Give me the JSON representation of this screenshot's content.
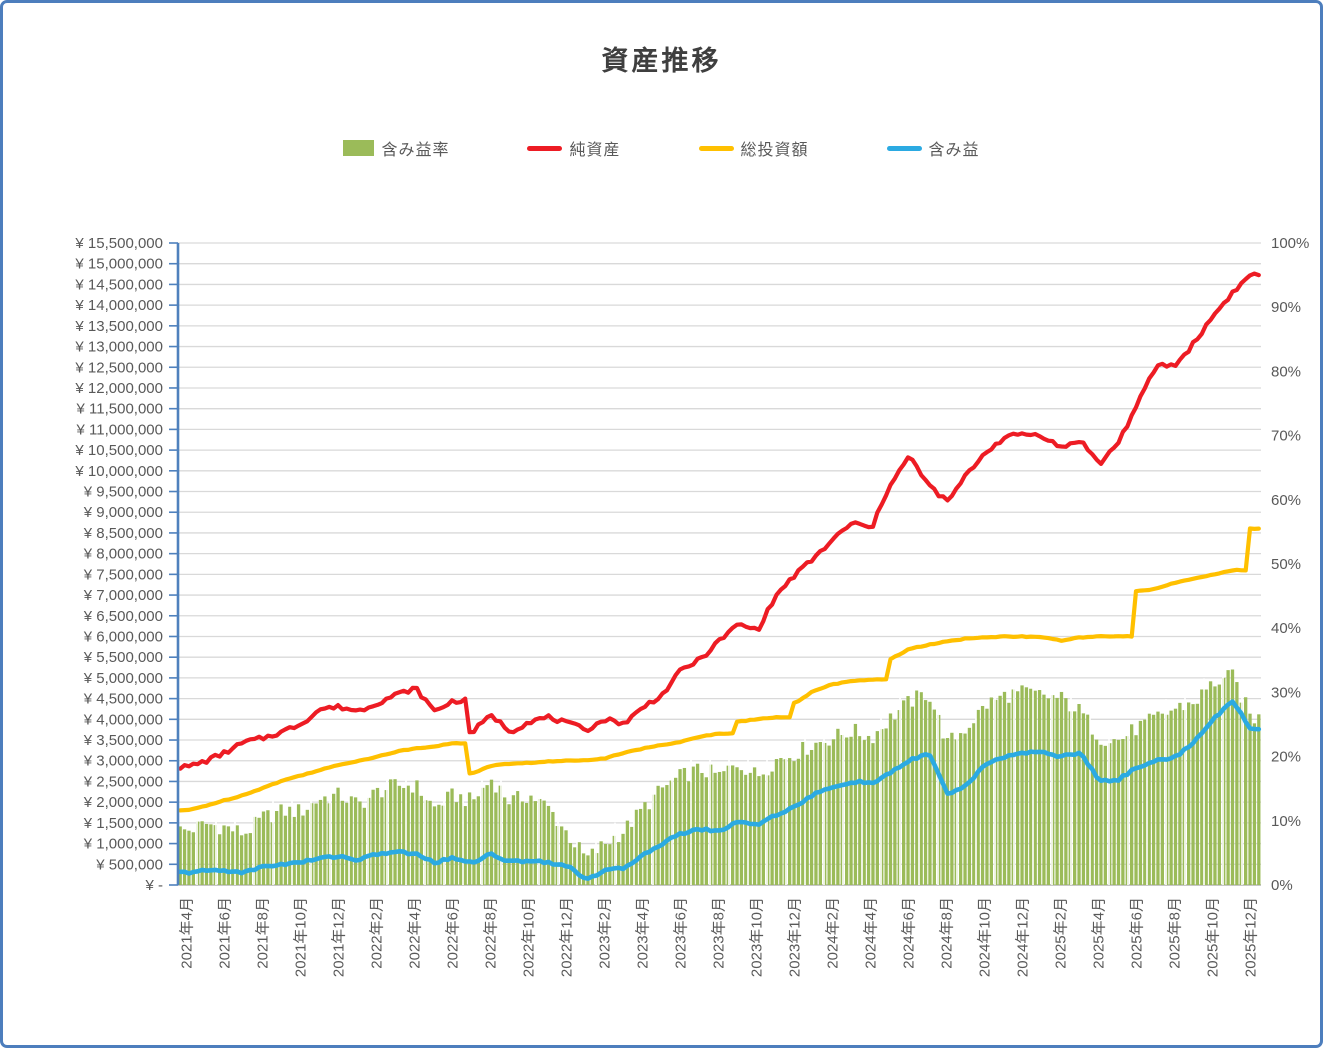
{
  "title": "資産推移",
  "legend": {
    "items": [
      {
        "label": "含み益率",
        "color": "#9bbb59",
        "shape": "box"
      },
      {
        "label": "純資産",
        "color": "#ed1c24",
        "shape": "line"
      },
      {
        "label": "総投資額",
        "color": "#ffc000",
        "shape": "line"
      },
      {
        "label": "含み益",
        "color": "#2baae2",
        "shape": "line"
      }
    ]
  },
  "chart_data": {
    "type": "combo",
    "title": "資産推移",
    "x_start": "2021-04",
    "x_end": "2025-12",
    "x_unit": "month",
    "grid": "horizontal",
    "legend_position": "top",
    "x_tick_labels": [
      "2021年4月",
      "2021年6月",
      "2021年8月",
      "2021年10月",
      "2021年12月",
      "2022年2月",
      "2022年4月",
      "2022年6月",
      "2022年8月",
      "2022年10月",
      "2022年12月",
      "2023年2月",
      "2023年4月",
      "2023年6月",
      "2023年8月",
      "2023年10月",
      "2023年12月",
      "2024年2月",
      "2024年4月",
      "2024年6月",
      "2024年8月",
      "2024年10月",
      "2024年12月",
      "2025年2月",
      "2025年4月",
      "2025年6月",
      "2025年8月",
      "2025年10月",
      "2025年12月"
    ],
    "left_axis": {
      "unit": "JPY",
      "min": 0,
      "max": 15500000,
      "tick_interval": 500000,
      "tick_labels": [
        "¥ 15,500,000",
        "¥ 15,000,000",
        "¥ 14,500,000",
        "¥ 14,000,000",
        "¥ 13,500,000",
        "¥ 13,000,000",
        "¥ 12,500,000",
        "¥ 12,000,000",
        "¥ 11,500,000",
        "¥ 11,000,000",
        "¥ 10,500,000",
        "¥ 10,000,000",
        "¥ 9,500,000",
        "¥ 9,000,000",
        "¥ 8,500,000",
        "¥ 8,000,000",
        "¥ 7,500,000",
        "¥ 7,000,000",
        "¥ 6,500,000",
        "¥ 6,000,000",
        "¥ 5,500,000",
        "¥ 5,000,000",
        "¥ 4,500,000",
        "¥ 4,000,000",
        "¥ 3,500,000",
        "¥ 3,000,000",
        "¥ 2,500,000",
        "¥ 2,000,000",
        "¥ 1,500,000",
        "¥ 1,000,000",
        "¥ 500,000",
        "¥ -"
      ]
    },
    "right_axis": {
      "unit": "%",
      "min": 0,
      "max": 100,
      "tick_interval": 10,
      "tick_labels": [
        "100%",
        "90%",
        "80%",
        "70%",
        "60%",
        "50%",
        "40%",
        "30%",
        "20%",
        "10%",
        "0%"
      ]
    },
    "series": [
      {
        "name": "含み益率",
        "type": "bar",
        "axis": "right",
        "unit": "%",
        "color": "#9bbb59",
        "monthly_values": [
          8.5,
          9.5,
          9.0,
          8.0,
          10.5,
          11.5,
          11.5,
          13.5,
          14.0,
          12.5,
          14.5,
          15.5,
          15.5,
          12.0,
          14.0,
          13.0,
          16.5,
          13.0,
          14.0,
          12.0,
          8.0,
          4.0,
          6.5,
          8.5,
          12.0,
          15.0,
          17.0,
          18.0,
          17.0,
          19.0,
          17.0,
          19.5,
          20.5,
          22.0,
          23.0,
          24.0,
          23.0,
          26.0,
          28.5,
          30.0,
          22.0,
          24.5,
          28.0,
          29.5,
          30.0,
          29.5,
          29.0,
          27.0,
          23.0,
          22.5,
          24.5,
          26.0,
          27.5,
          28.5,
          31.5,
          32.5,
          26.0
        ]
      },
      {
        "name": "純資産",
        "type": "line",
        "axis": "left",
        "unit": "JPY millions",
        "color": "#ed1c24",
        "step_months": [
          15
        ],
        "monthly_values": [
          2.85,
          3.0,
          3.2,
          3.45,
          3.55,
          3.7,
          3.9,
          4.25,
          4.3,
          4.2,
          4.4,
          4.6,
          4.75,
          4.2,
          4.45,
          3.7,
          4.1,
          3.7,
          3.95,
          4.05,
          3.9,
          3.75,
          4.0,
          3.9,
          4.3,
          4.6,
          5.2,
          5.45,
          5.9,
          6.3,
          6.15,
          7.0,
          7.5,
          7.9,
          8.35,
          8.75,
          8.6,
          9.7,
          10.35,
          9.65,
          9.25,
          9.9,
          10.45,
          10.8,
          10.9,
          10.85,
          10.55,
          10.75,
          10.15,
          10.7,
          11.6,
          12.55,
          12.55,
          13.1,
          13.75,
          14.3,
          14.75
        ]
      },
      {
        "name": "総投資額",
        "type": "line",
        "axis": "left",
        "unit": "JPY millions",
        "color": "#ffc000",
        "step_months": [
          15,
          29,
          32,
          37,
          50,
          56
        ],
        "monthly_values": [
          1.8,
          1.92,
          2.05,
          2.18,
          2.35,
          2.52,
          2.65,
          2.78,
          2.9,
          3.0,
          3.1,
          3.22,
          3.3,
          3.35,
          3.42,
          2.7,
          2.88,
          2.93,
          2.95,
          2.98,
          3.0,
          3.02,
          3.06,
          3.2,
          3.3,
          3.38,
          3.46,
          3.58,
          3.66,
          3.95,
          4.0,
          4.05,
          4.4,
          4.7,
          4.85,
          4.92,
          4.96,
          5.45,
          5.7,
          5.8,
          5.88,
          5.95,
          5.98,
          6.0,
          6.0,
          5.98,
          5.9,
          5.98,
          6.0,
          6.0,
          7.1,
          7.15,
          7.3,
          7.4,
          7.5,
          7.6,
          8.6
        ]
      },
      {
        "name": "含み益",
        "type": "line",
        "axis": "left",
        "unit": "JPY millions",
        "color": "#2baae2",
        "monthly_values": [
          0.3,
          0.35,
          0.35,
          0.3,
          0.45,
          0.5,
          0.55,
          0.65,
          0.7,
          0.6,
          0.75,
          0.8,
          0.75,
          0.55,
          0.65,
          0.55,
          0.75,
          0.55,
          0.6,
          0.55,
          0.45,
          0.15,
          0.35,
          0.4,
          0.75,
          1.0,
          1.25,
          1.35,
          1.3,
          1.55,
          1.45,
          1.7,
          1.9,
          2.2,
          2.35,
          2.5,
          2.45,
          2.7,
          3.0,
          3.2,
          2.2,
          2.4,
          2.9,
          3.1,
          3.2,
          3.2,
          3.1,
          3.2,
          2.5,
          2.55,
          2.85,
          3.0,
          3.1,
          3.45,
          4.0,
          4.45,
          3.75
        ]
      }
    ],
    "colors": {
      "axis_line": "#4f81bd",
      "gridline": "#d9d9d9",
      "bottom_line": "#c6c6c6",
      "tick_text": "#595959",
      "title_text": "#3f3f3f"
    }
  }
}
